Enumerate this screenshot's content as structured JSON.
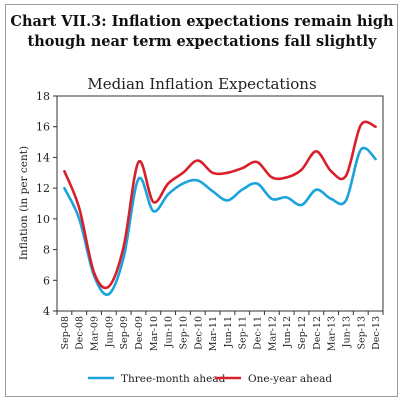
{
  "chart_data": {
    "type": "line",
    "title_lines": [
      "Chart VII.3: Inflation expectations remain high",
      "though near term expectations fall slightly"
    ],
    "subtitle": "Median Inflation Expectations",
    "ylabel": "Inflation (in per cent)",
    "xlabel": "",
    "ylim": [
      4,
      18
    ],
    "yticks": [
      4,
      6,
      8,
      10,
      12,
      14,
      16,
      18
    ],
    "x_tick_labels": [
      "Sep-08",
      "Dec-08",
      "Mar-09",
      "Jun-09",
      "Sep-09",
      "Dec-09",
      "Mar-10",
      "Jun-10",
      "Sep-10",
      "Dec-10",
      "Mar-11",
      "Jun-11",
      "Sep-11",
      "Dec-11",
      "Mar-12",
      "Jun-12",
      "Sep-12",
      "Dec-12",
      "Mar-13",
      "Jun-13",
      "Sep-13",
      "Dec-13"
    ],
    "legend_position": "bottom",
    "grid": false,
    "series": [
      {
        "name": "Three-month ahead",
        "color": "#1aa3dd",
        "values": [
          12.0,
          10.0,
          6.3,
          5.1,
          7.5,
          12.6,
          10.5,
          11.6,
          12.3,
          12.5,
          11.8,
          11.2,
          11.9,
          12.3,
          11.3,
          11.4,
          10.9,
          11.9,
          11.3,
          11.2,
          14.5,
          13.9
        ]
      },
      {
        "name": "One-year ahead",
        "color": "#d7202a",
        "values": [
          13.1,
          10.7,
          6.5,
          5.6,
          8.2,
          13.7,
          11.1,
          12.3,
          13.0,
          13.8,
          13.0,
          13.0,
          13.3,
          13.7,
          12.7,
          12.7,
          13.2,
          14.4,
          13.1,
          12.8,
          16.1,
          16.0
        ]
      }
    ]
  }
}
